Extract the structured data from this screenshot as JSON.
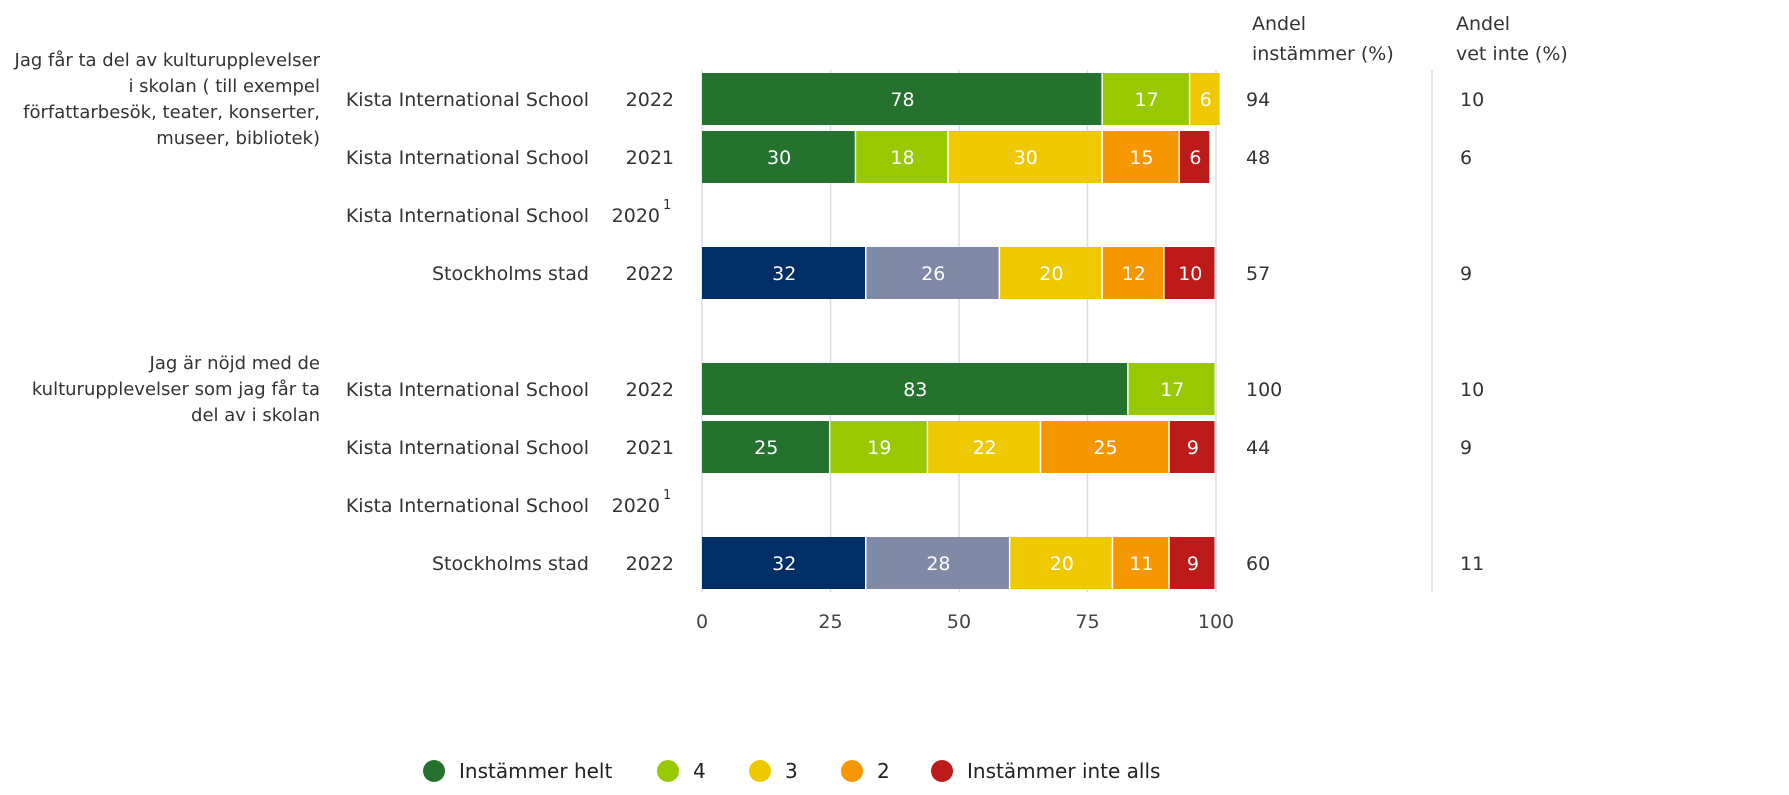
{
  "columns": {
    "agree_header": [
      "Andel",
      "instämmer (%)"
    ],
    "dontknow_header": [
      "Andel",
      "vet inte (%)"
    ]
  },
  "colors": {
    "Instämmer helt": "#25722f",
    "4": "#97c800",
    "3": "#eec800",
    "2": "#f79700",
    "Instämmer inte alls": "#bd1a1a",
    "city_1": "#022e67",
    "city_2": "#808aa6",
    "gridline": "#d9dde8"
  },
  "chart_data": {
    "type": "bar",
    "orientation": "horizontal",
    "stacked": true,
    "xlim": [
      0,
      100
    ],
    "xticks": [
      "0",
      "25",
      "50",
      "75",
      "100"
    ],
    "legend": {
      "position": "bottom",
      "entries": [
        "Instämmer helt",
        "4",
        "3",
        "2",
        "Instämmer inte alls"
      ]
    },
    "groups": [
      {
        "question": [
          "Jag får ta del av kulturupplevelser",
          "i skolan ( till exempel",
          "författarbesök, teater, konserter,",
          "museer, bibliotek)"
        ],
        "rows": [
          {
            "label": "Kista International School",
            "year": "2022",
            "footnote": "",
            "values": [
              78,
              17,
              6,
              0,
              0
            ],
            "value_labels": [
              "78",
              "17",
              "6",
              "0",
              ""
            ],
            "agree": "94",
            "dont_know": "10"
          },
          {
            "label": "Kista International School",
            "year": "2021",
            "footnote": "",
            "values": [
              30,
              18,
              30,
              15,
              6
            ],
            "value_labels": [
              "30",
              "18",
              "30",
              "15",
              "6"
            ],
            "agree": "48",
            "dont_know": "6"
          },
          {
            "label": "Kista International School",
            "year": "2020",
            "footnote": "1",
            "values": [],
            "value_labels": [],
            "agree": "",
            "dont_know": ""
          },
          {
            "label": "Stockholms stad",
            "year": "2022",
            "footnote": "",
            "city": true,
            "values": [
              32,
              26,
              20,
              12,
              10
            ],
            "value_labels": [
              "32",
              "26",
              "20",
              "12",
              "10"
            ],
            "agree": "57",
            "dont_know": "9"
          }
        ]
      },
      {
        "question": [
          "Jag är nöjd med de",
          "kulturupplevelser som jag får ta",
          "del av i skolan"
        ],
        "rows": [
          {
            "label": "Kista International School",
            "year": "2022",
            "footnote": "",
            "values": [
              83,
              17,
              0,
              0,
              0
            ],
            "value_labels": [
              "83",
              "17",
              "0",
              "",
              ""
            ],
            "agree": "100",
            "dont_know": "10"
          },
          {
            "label": "Kista International School",
            "year": "2021",
            "footnote": "",
            "values": [
              25,
              19,
              22,
              25,
              9
            ],
            "value_labels": [
              "25",
              "19",
              "22",
              "25",
              "9"
            ],
            "agree": "44",
            "dont_know": "9"
          },
          {
            "label": "Kista International School",
            "year": "2020",
            "footnote": "1",
            "values": [],
            "value_labels": [],
            "agree": "",
            "dont_know": ""
          },
          {
            "label": "Stockholms stad",
            "year": "2022",
            "footnote": "",
            "city": true,
            "values": [
              32,
              28,
              20,
              11,
              9
            ],
            "value_labels": [
              "32",
              "28",
              "20",
              "11",
              "9"
            ],
            "agree": "60",
            "dont_know": "11"
          }
        ]
      }
    ]
  }
}
